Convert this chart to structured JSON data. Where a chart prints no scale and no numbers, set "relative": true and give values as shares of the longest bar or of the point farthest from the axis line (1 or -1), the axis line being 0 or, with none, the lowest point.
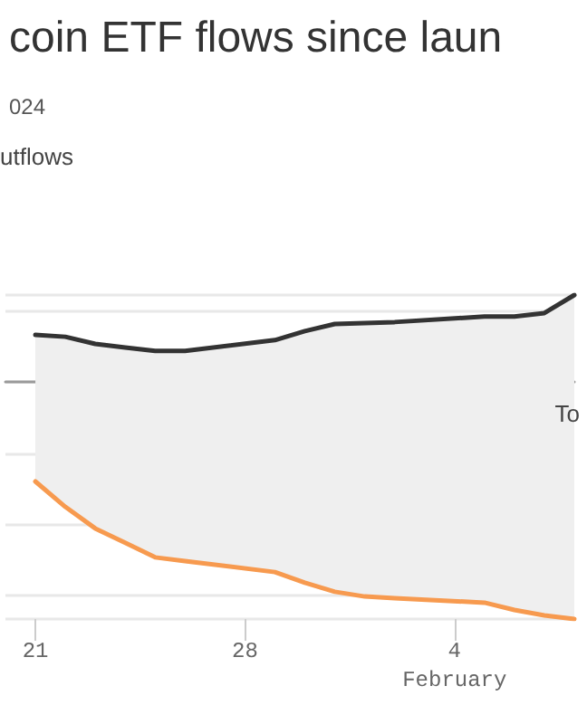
{
  "chart_data": {
    "type": "area",
    "title": "coin ETF flows since laun",
    "subtitle": "024",
    "annotations": [
      "utflows",
      "To"
    ],
    "relative": true,
    "grid": "y",
    "marker": "none",
    "line_style": "solid",
    "xlim": [
      "--01-20",
      "--02-08"
    ],
    "xticks": [
      {
        "value": "--01-21",
        "label": "21"
      },
      {
        "value": "--01-28",
        "label": "28"
      },
      {
        "value": "--02-04",
        "label": "4\nFebruary"
      }
    ],
    "x": [
      "--01-21",
      "--01-22",
      "--01-23",
      "--01-24",
      "--01-25",
      "--01-26",
      "--01-29",
      "--01-30",
      "--01-31",
      "--02-01",
      "--02-02",
      "--02-05",
      "--02-06",
      "--02-07",
      "--02-08"
    ],
    "series": [
      {
        "color": "#333333",
        "values": [
          0.198,
          0.19,
          0.16,
          0.145,
          0.13,
          0.13,
          0.176,
          0.214,
          0.244,
          0.248,
          0.252,
          0.275,
          0.275,
          0.29,
          0.366
        ]
      },
      {
        "color": "#f79a4f",
        "values": [
          -0.42,
          -0.527,
          -0.618,
          -0.679,
          -0.74,
          -0.756,
          -0.802,
          -0.847,
          -0.885,
          -0.905,
          -0.912,
          -0.931,
          -0.962,
          -0.985,
          -1
        ]
      }
    ]
  }
}
